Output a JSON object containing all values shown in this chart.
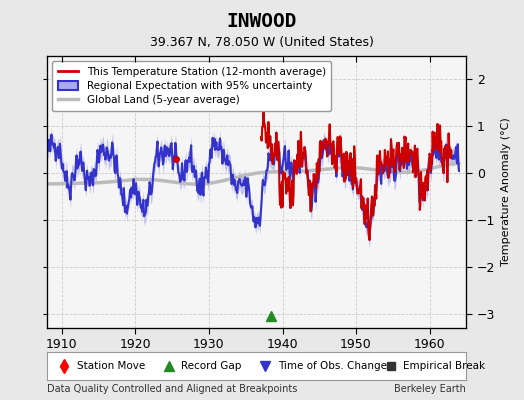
{
  "title": "INWOOD",
  "subtitle": "39.367 N, 78.050 W (United States)",
  "ylabel": "Temperature Anomaly (°C)",
  "xlabel_bottom_left": "Data Quality Controlled and Aligned at Breakpoints",
  "xlabel_bottom_right": "Berkeley Earth",
  "xlim": [
    1908,
    1965
  ],
  "ylim": [
    -3.3,
    2.5
  ],
  "yticks": [
    -3,
    -2,
    -1,
    0,
    1,
    2
  ],
  "xticks": [
    1910,
    1920,
    1930,
    1940,
    1950,
    1960
  ],
  "bg_color": "#e8e8e8",
  "plot_bg_color": "#f5f5f5",
  "regional_color": "#3333cc",
  "regional_band_color": "#aaaaee",
  "station_color": "#cc0000",
  "global_color": "#bbbbbb",
  "global_lw": 2.5,
  "regional_lw": 1.5,
  "station_lw": 1.5,
  "seed": 42,
  "green_triangle_x": 1938.5,
  "green_triangle_y": -3.05,
  "red_dot_x": 1925.5,
  "red_dot_y": 0.3,
  "station_start_year": 1937,
  "station_end_year": 1963
}
